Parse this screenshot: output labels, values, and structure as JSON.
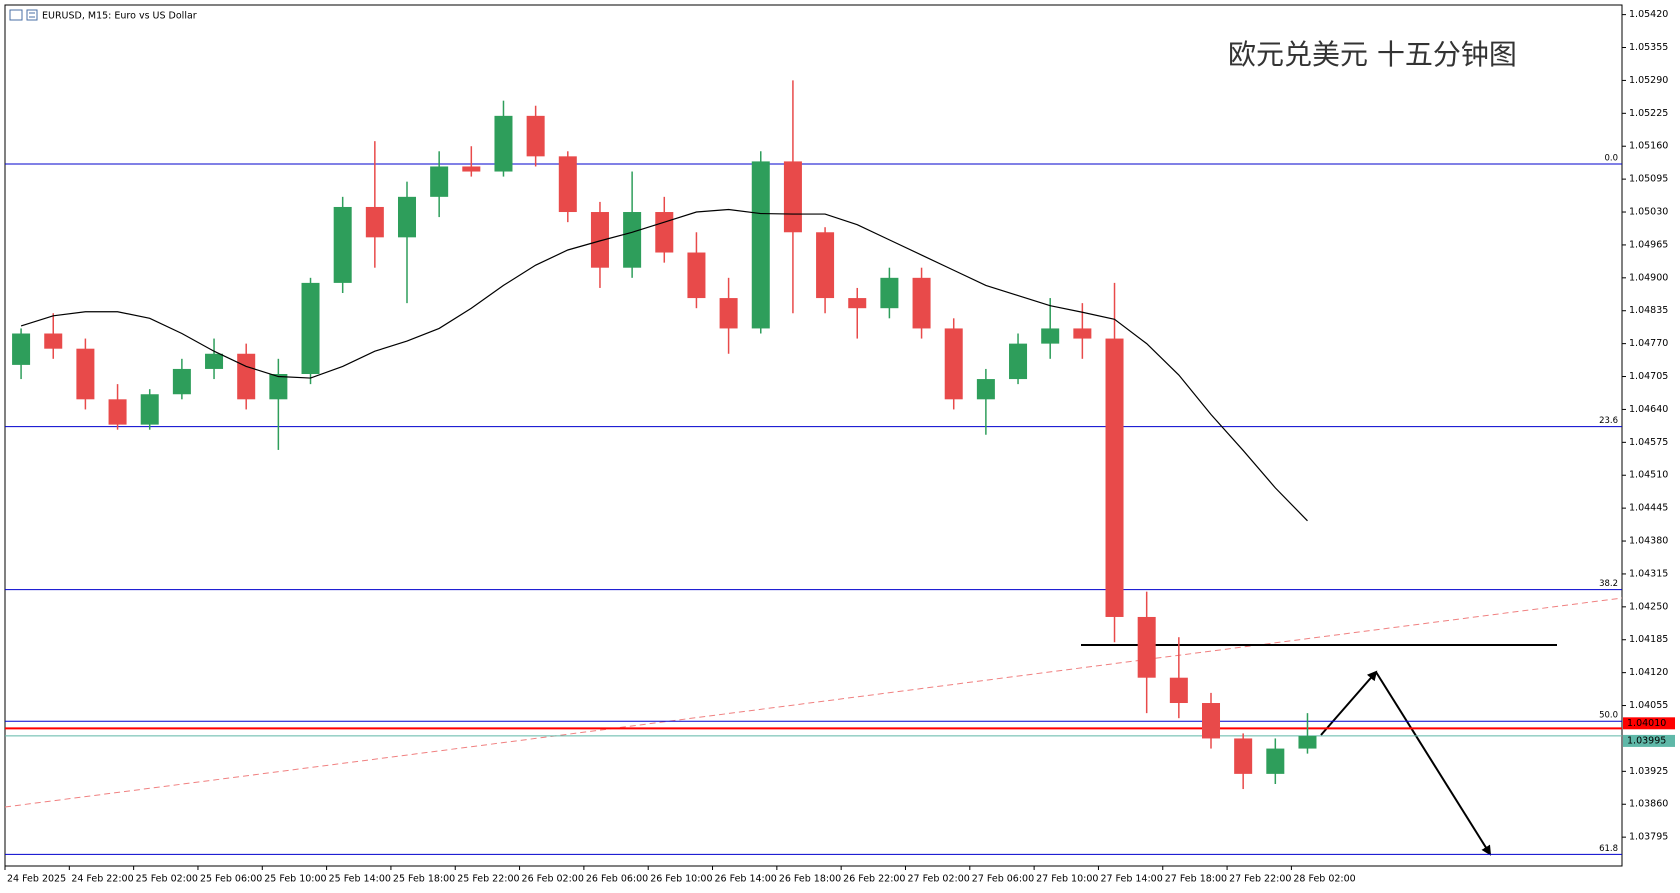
{
  "header": {
    "symbol": "EURUSD, M15:  Euro vs US Dollar"
  },
  "chart_data": {
    "type": "candlestick",
    "title": "欧元兑美元 十五分钟图",
    "up_color": "#2e9e5b",
    "down_color": "#e84a4a",
    "open": [
      1.04728,
      1.0479,
      1.0476,
      1.0466,
      1.0461,
      1.0467,
      1.0472,
      1.0475,
      1.0466,
      1.0471,
      1.0489,
      1.0504,
      1.0498,
      1.0506,
      1.0512,
      1.0511,
      1.0522,
      1.0514,
      1.0503,
      1.0492,
      1.0503,
      1.0495,
      1.0486,
      1.048,
      1.0513,
      1.0499,
      1.0486,
      1.0484,
      1.049,
      1.048,
      1.0466,
      1.047,
      1.0477,
      1.048,
      1.0478,
      1.0423,
      1.0411,
      1.0406,
      1.0399,
      1.0392,
      1.0397
    ],
    "high": [
      1.048,
      1.0483,
      1.0478,
      1.0469,
      1.0468,
      1.0474,
      1.0478,
      1.0477,
      1.0474,
      1.049,
      1.0506,
      1.0517,
      1.0509,
      1.0515,
      1.0516,
      1.0525,
      1.0524,
      1.0515,
      1.0505,
      1.0511,
      1.0506,
      1.0499,
      1.049,
      1.0515,
      1.0529,
      1.05,
      1.0488,
      1.0492,
      1.0492,
      1.0482,
      1.0472,
      1.0479,
      1.0486,
      1.0485,
      1.0489,
      1.0428,
      1.0419,
      1.0408,
      1.04,
      1.0399,
      1.0404
    ],
    "low": [
      1.047,
      1.0474,
      1.0464,
      1.046,
      1.046,
      1.0466,
      1.047,
      1.0464,
      1.0456,
      1.0469,
      1.0487,
      1.0492,
      1.0485,
      1.0502,
      1.051,
      1.051,
      1.0512,
      1.0501,
      1.0488,
      1.049,
      1.0493,
      1.0484,
      1.0475,
      1.0479,
      1.0483,
      1.0483,
      1.0478,
      1.0482,
      1.0478,
      1.0464,
      1.0459,
      1.0469,
      1.0474,
      1.0474,
      1.0418,
      1.0404,
      1.0403,
      1.0397,
      1.0389,
      1.039,
      1.0396
    ],
    "close": [
      1.0479,
      1.0476,
      1.0466,
      1.0461,
      1.0467,
      1.0472,
      1.0475,
      1.0466,
      1.0471,
      1.0489,
      1.0504,
      1.0498,
      1.0506,
      1.0512,
      1.0511,
      1.0522,
      1.0514,
      1.0503,
      1.0492,
      1.0503,
      1.0495,
      1.0486,
      1.048,
      1.0513,
      1.0499,
      1.0486,
      1.0484,
      1.049,
      1.048,
      1.0466,
      1.047,
      1.0477,
      1.048,
      1.0478,
      1.0423,
      1.0411,
      1.0406,
      1.0399,
      1.0392,
      1.0397,
      1.03995
    ],
    "ma": {
      "color": "#000000",
      "values": [
        1.04805,
        1.04825,
        1.04833,
        1.04833,
        1.0482,
        1.0479,
        1.04755,
        1.04725,
        1.04705,
        1.04702,
        1.04725,
        1.04755,
        1.04775,
        1.048,
        1.0484,
        1.04885,
        1.04925,
        1.04955,
        1.04973,
        1.0499,
        1.0501,
        1.0503,
        1.05035,
        1.05027,
        1.05026,
        1.05026,
        1.05005,
        1.04975,
        1.04945,
        1.04915,
        1.04885,
        1.04865,
        1.04845,
        1.04832,
        1.04818,
        1.0477,
        1.04708,
        1.0463,
        1.04559,
        1.04485,
        1.0442
      ]
    },
    "fib": {
      "color": "#0000cd",
      "levels": [
        {
          "value": 1.05125,
          "label": "0.0"
        },
        {
          "value": 1.04606,
          "label": "23.6"
        },
        {
          "value": 1.04284,
          "label": "38.2"
        },
        {
          "value": 1.04024,
          "label": "50.0"
        },
        {
          "value": 1.03761,
          "label": "61.8"
        }
      ]
    },
    "price_lines": [
      {
        "value": 1.0401,
        "label": "1.04010",
        "color": "#ff0000"
      },
      {
        "value": 1.03995,
        "label": "1.03995",
        "color": "#5fb8a8"
      }
    ],
    "ylim": [
      1.03738,
      1.05439
    ],
    "yticks": [
      {
        "value": 1.0542,
        "label": "1.05420"
      },
      {
        "value": 1.05355,
        "label": "1.05355"
      },
      {
        "value": 1.0529,
        "label": "1.05290"
      },
      {
        "value": 1.05225,
        "label": "1.05225"
      },
      {
        "value": 1.0516,
        "label": "1.05160"
      },
      {
        "value": 1.05095,
        "label": "1.05095"
      },
      {
        "value": 1.0503,
        "label": "1.05030"
      },
      {
        "value": 1.04965,
        "label": "1.04965"
      },
      {
        "value": 1.049,
        "label": "1.04900"
      },
      {
        "value": 1.04835,
        "label": "1.04835"
      },
      {
        "value": 1.0477,
        "label": "1.04770"
      },
      {
        "value": 1.04705,
        "label": "1.04705"
      },
      {
        "value": 1.0464,
        "label": "1.04640"
      },
      {
        "value": 1.04575,
        "label": "1.04575"
      },
      {
        "value": 1.0451,
        "label": "1.04510"
      },
      {
        "value": 1.04445,
        "label": "1.04445"
      },
      {
        "value": 1.0438,
        "label": "1.04380"
      },
      {
        "value": 1.04315,
        "label": "1.04315"
      },
      {
        "value": 1.0425,
        "label": "1.04250"
      },
      {
        "value": 1.04185,
        "label": "1.04185"
      },
      {
        "value": 1.0412,
        "label": "1.04120"
      },
      {
        "value": 1.04055,
        "label": "1.04055"
      },
      {
        "value": 1.03925,
        "label": "1.03925"
      },
      {
        "value": 1.0386,
        "label": "1.03860"
      },
      {
        "value": 1.03795,
        "label": "1.03795"
      }
    ],
    "xticks": [
      "24 Feb 2025",
      "24 Feb 22:00",
      "25 Feb 02:00",
      "25 Feb 06:00",
      "25 Feb 10:00",
      "25 Feb 14:00",
      "25 Feb 18:00",
      "25 Feb 22:00",
      "26 Feb 02:00",
      "26 Feb 06:00",
      "26 Feb 10:00",
      "26 Feb 14:00",
      "26 Feb 18:00",
      "26 Feb 22:00",
      "27 Feb 02:00",
      "27 Feb 06:00",
      "27 Feb 10:00",
      "27 Feb 14:00",
      "27 Feb 18:00",
      "27 Feb 22:00",
      "28 Feb 02:00"
    ]
  }
}
